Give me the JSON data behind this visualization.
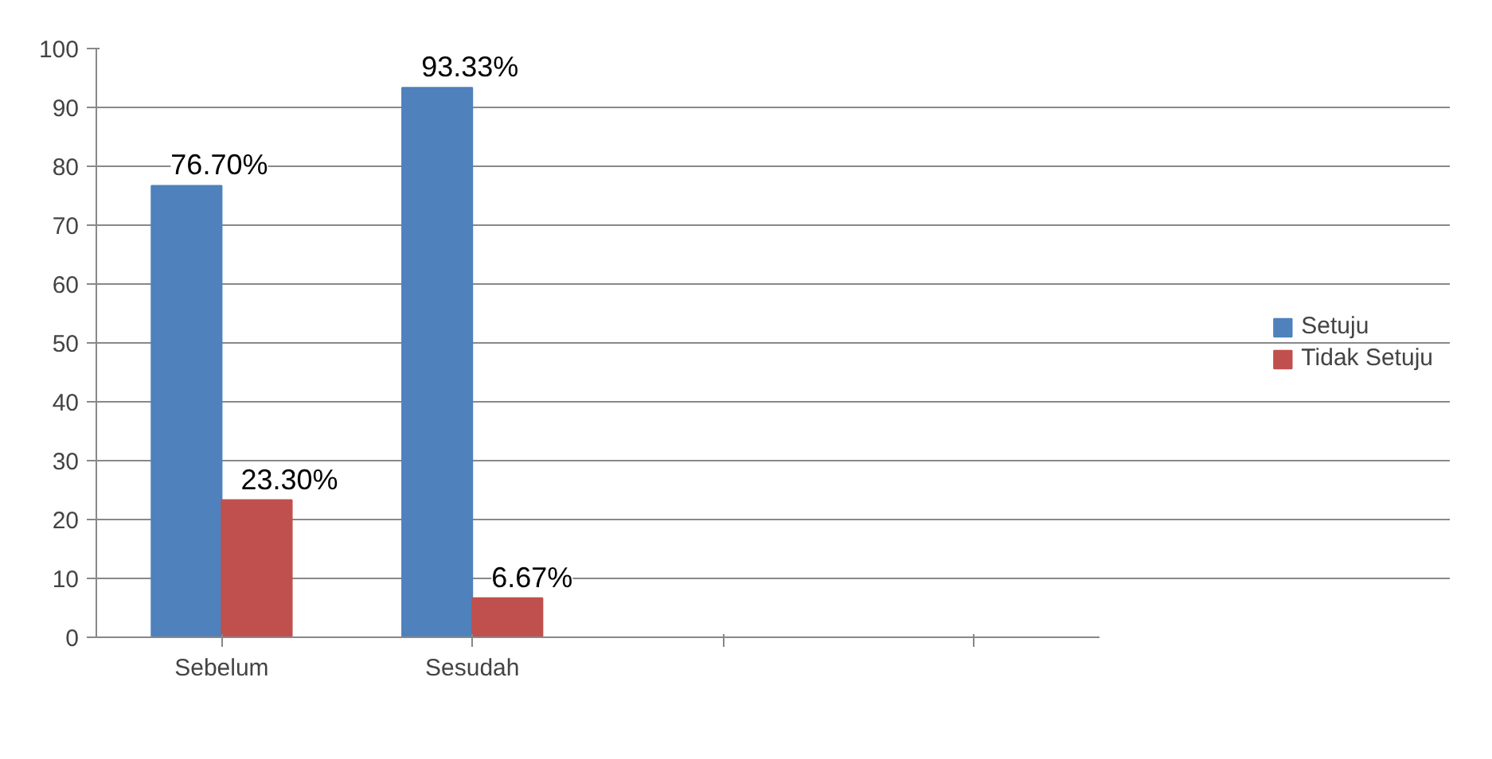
{
  "chart_data": {
    "type": "bar",
    "categories": [
      "Sebelum",
      "Sesudah",
      null,
      null
    ],
    "series": [
      {
        "name": "Setuju",
        "color": "#4f81bd",
        "values": [
          76.7,
          93.33,
          null,
          null
        ],
        "value_labels": [
          "76.70%",
          "93.33%",
          null,
          null
        ]
      },
      {
        "name": "Tidak Setuju",
        "color": "#c0504d",
        "values": [
          23.3,
          6.67,
          null,
          null
        ],
        "value_labels": [
          "23.30%",
          "6.67%",
          null,
          null
        ]
      }
    ],
    "ylim": [
      0,
      100
    ],
    "yticks": [
      0,
      10,
      20,
      30,
      40,
      50,
      60,
      70,
      80,
      90,
      100
    ],
    "grid": "y",
    "legend": "right"
  }
}
